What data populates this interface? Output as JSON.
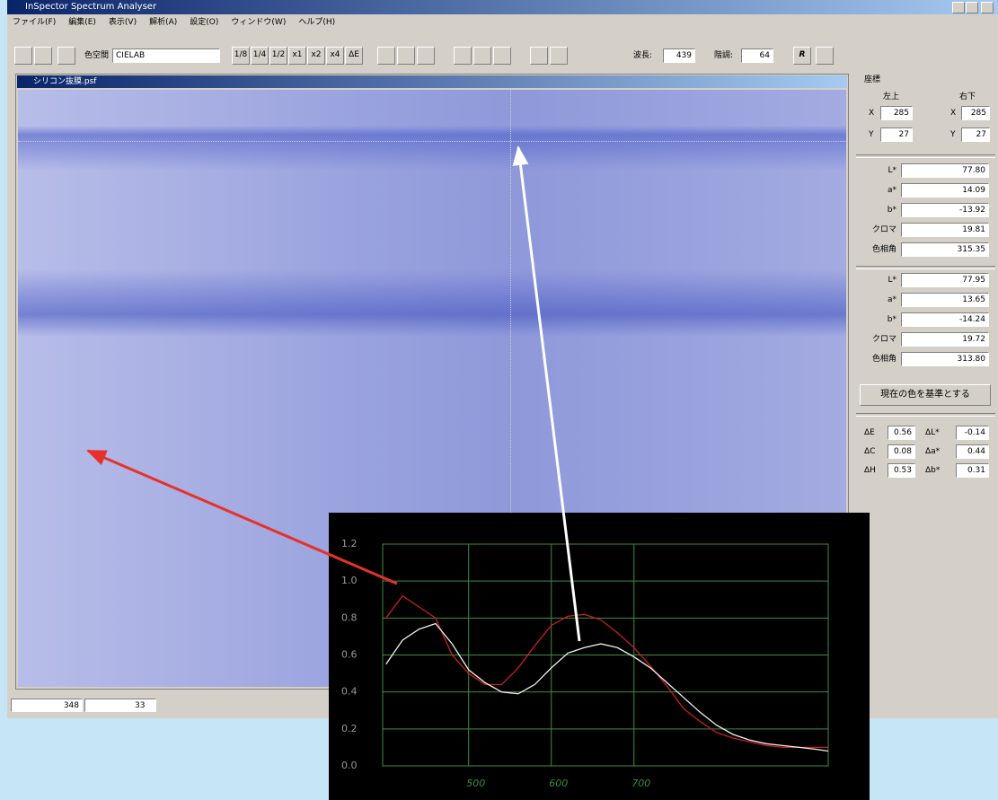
{
  "window": {
    "title": "InSpector Spectrum Analyser",
    "menu": [
      "ファイル(F)",
      "編集(E)",
      "表示(V)",
      "解析(A)",
      "設定(O)",
      "ウィンドウ(W)",
      "ヘルプ(H)"
    ]
  },
  "toolbar": {
    "colorspace_label": "色空間",
    "colorspace": "CIELAB",
    "zoom": [
      "1/8",
      "1/4",
      "1/2",
      "x1",
      "x2",
      "x4",
      "ΔE"
    ],
    "wavelength_label": "波長:",
    "wavelength": "439",
    "gradation_label": "階調:",
    "gradation": "64",
    "r": "R"
  },
  "document": {
    "title": "シリコン抜膜.psf"
  },
  "panel": {
    "coords_title": "座標",
    "top_left": "左上",
    "bottom_right": "右下",
    "coords": [
      {
        "label": "X",
        "left": "285",
        "right": "285"
      },
      {
        "label": "Y",
        "left": "27",
        "right": "27"
      }
    ],
    "group1": [
      [
        "L*",
        "77.80"
      ],
      [
        "a*",
        "14.09"
      ],
      [
        "b*",
        "-13.92"
      ],
      [
        "クロマ",
        "19.81"
      ],
      [
        "色相角",
        "315.35"
      ]
    ],
    "group2": [
      [
        "L*",
        "77.95"
      ],
      [
        "a*",
        "13.65"
      ],
      [
        "b*",
        "-14.24"
      ],
      [
        "クロマ",
        "19.72"
      ],
      [
        "色相角",
        "313.80"
      ]
    ],
    "button": "現在の色を基準とする",
    "deltas": [
      [
        "ΔE",
        "0.56",
        "ΔL*",
        "-0.14"
      ],
      [
        "ΔC",
        "0.08",
        "Δa*",
        "0.44"
      ],
      [
        "ΔH",
        "0.53",
        "Δb*",
        "0.31"
      ]
    ]
  },
  "status": [
    "348",
    "33"
  ],
  "chart_data": {
    "type": "line",
    "x": [
      400,
      420,
      440,
      460,
      480,
      500,
      520,
      540,
      560,
      580,
      600,
      620,
      640,
      660,
      680,
      700,
      720,
      740,
      760,
      780,
      800,
      820,
      840,
      860,
      880,
      900,
      920,
      935
    ],
    "series": [
      {
        "color": "#c8201e",
        "values": [
          0.8,
          0.92,
          0.86,
          0.8,
          0.6,
          0.5,
          0.44,
          0.44,
          0.53,
          0.65,
          0.76,
          0.81,
          0.82,
          0.79,
          0.72,
          0.64,
          0.54,
          0.43,
          0.31,
          0.24,
          0.18,
          0.15,
          0.13,
          0.11,
          0.1,
          0.1,
          0.1,
          0.1
        ]
      },
      {
        "color": "#f0f0f0",
        "values": [
          0.55,
          0.68,
          0.74,
          0.77,
          0.66,
          0.52,
          0.45,
          0.4,
          0.39,
          0.44,
          0.53,
          0.61,
          0.64,
          0.66,
          0.64,
          0.59,
          0.53,
          0.45,
          0.37,
          0.29,
          0.22,
          0.17,
          0.14,
          0.12,
          0.11,
          0.1,
          0.09,
          0.08
        ]
      }
    ],
    "xlim": [
      396,
      935
    ],
    "xticks": [
      500,
      600,
      700
    ],
    "ylim": [
      0,
      1.2
    ],
    "yticks": [
      {
        "value": 0,
        "label": "0.0"
      },
      0.2,
      0.4,
      0.6,
      0.8,
      {
        "value": 1,
        "label": "1.0"
      },
      1.2
    ],
    "grid": true,
    "grid_color": "#3f8f3f"
  }
}
